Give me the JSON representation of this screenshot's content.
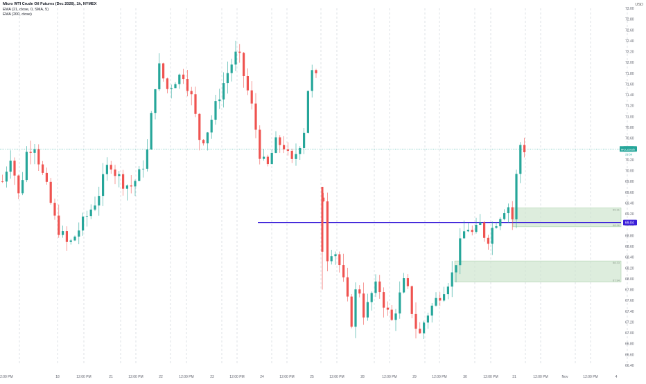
{
  "header": {
    "title": "Micro WTI Crude Oil Futures (Dec 2026), 1h, NYMEX",
    "indicator_1": "EMA (21, close, 0, SMA, 5)",
    "indicator_2": "EMA (200, close)",
    "currency": "USD"
  },
  "chart_data": {
    "type": "candlestick",
    "symbol": "MCLZ2026",
    "timeframe": "1h",
    "ylim": [
      66.4,
      73.0
    ],
    "y_ticks": [
      "73.00",
      "72.80",
      "72.60",
      "72.40",
      "72.20",
      "72.00",
      "71.80",
      "71.60",
      "71.40",
      "71.20",
      "71.00",
      "70.80",
      "70.60",
      "70.40",
      "70.20",
      "70.00",
      "69.80",
      "69.60",
      "69.40",
      "69.20",
      "69.00",
      "68.80",
      "68.60",
      "68.40",
      "68.20",
      "68.00",
      "67.80",
      "67.60",
      "67.40",
      "67.20",
      "67.00",
      "66.80",
      "66.60",
      "66.40"
    ],
    "x_ticks": [
      "12:00 PM",
      "18",
      "12:00 PM",
      "21",
      "12:00 PM",
      "22",
      "12:00 PM",
      "23",
      "12:00 PM",
      "24",
      "12:00 PM",
      "25",
      "12:00 PM",
      "28",
      "12:00 PM",
      "29",
      "12:00 PM",
      "30",
      "12:00 PM",
      "31",
      "12:00 PM",
      "Nov",
      "12:00 PM",
      "4",
      "12:00 PM"
    ],
    "last_price": "70.40",
    "last_price_sub": "23:59",
    "symbol_tag": "MCLZ2026",
    "horizontal_line": {
      "value": 69.04,
      "label": "69.04",
      "color": "#3a1fd9"
    },
    "zones": [
      {
        "top": 69.31,
        "bottom": 68.96,
        "label_top": "69.31",
        "label_bottom": "68.96"
      },
      {
        "top": 68.33,
        "bottom": 67.94,
        "label_top": "68.33",
        "label_bottom": "67.94"
      }
    ],
    "colors": {
      "up": "#26a69a",
      "down": "#ef5350",
      "line": "#3a1fd9",
      "zone": "#cfe6cf",
      "zone_edge": "#9cc89c",
      "last_line": "#26a69a"
    },
    "segments": [
      {
        "points": [
          [
            69.8,
            0
          ],
          [
            70.3,
            2
          ],
          [
            69.5,
            4
          ],
          [
            70.4,
            6
          ],
          [
            70.5,
            8
          ],
          [
            70.1,
            9
          ],
          [
            69.6,
            11
          ],
          [
            69.0,
            13
          ],
          [
            68.6,
            16
          ],
          [
            69.1,
            20
          ],
          [
            69.5,
            23
          ],
          [
            70.2,
            26
          ],
          [
            70.0,
            27
          ],
          [
            69.8,
            29
          ],
          [
            69.7,
            31
          ],
          [
            69.9,
            33
          ],
          [
            70.3,
            35
          ],
          [
            71.6,
            37
          ],
          [
            71.9,
            38
          ],
          [
            71.5,
            40
          ],
          [
            71.7,
            42
          ],
          [
            71.8,
            44
          ],
          [
            71.3,
            46
          ],
          [
            70.9,
            47
          ],
          [
            70.5,
            48
          ],
          [
            70.8,
            50
          ],
          [
            71.5,
            53
          ],
          [
            71.9,
            55
          ],
          [
            72.2,
            57
          ],
          [
            71.6,
            59
          ],
          [
            71.0,
            61
          ],
          [
            70.4,
            62
          ],
          [
            70.0,
            64
          ],
          [
            70.5,
            66
          ],
          [
            70.5,
            68
          ],
          [
            70.1,
            70
          ],
          [
            70.7,
            73
          ],
          [
            71.5,
            74
          ],
          [
            71.8,
            75
          ],
          [
            71.7,
            76
          ]
        ],
        "x0": 0,
        "x1": 463
      },
      {
        "points": [
          [
            69.5,
            0
          ],
          [
            68.4,
            1
          ],
          [
            68.6,
            3
          ],
          [
            68.2,
            5
          ],
          [
            67.6,
            7
          ],
          [
            67.1,
            8
          ],
          [
            68.0,
            10
          ],
          [
            67.3,
            12
          ],
          [
            67.7,
            14
          ],
          [
            67.9,
            16
          ],
          [
            67.5,
            18
          ],
          [
            67.2,
            20
          ],
          [
            67.6,
            22
          ],
          [
            68.0,
            24
          ],
          [
            67.4,
            26
          ],
          [
            66.9,
            28
          ],
          [
            67.3,
            30
          ],
          [
            67.6,
            33
          ],
          [
            67.9,
            36
          ],
          [
            68.1,
            38
          ],
          [
            68.6,
            40
          ],
          [
            69.0,
            42
          ],
          [
            68.8,
            44
          ],
          [
            69.0,
            46
          ],
          [
            68.7,
            48
          ],
          [
            69.0,
            50
          ],
          [
            69.2,
            52
          ],
          [
            69.4,
            54
          ],
          [
            69.0,
            56
          ],
          [
            70.4,
            57
          ],
          [
            70.5,
            58
          ],
          [
            70.4,
            59
          ]
        ],
        "x0": 463,
        "x1": 762
      }
    ]
  }
}
